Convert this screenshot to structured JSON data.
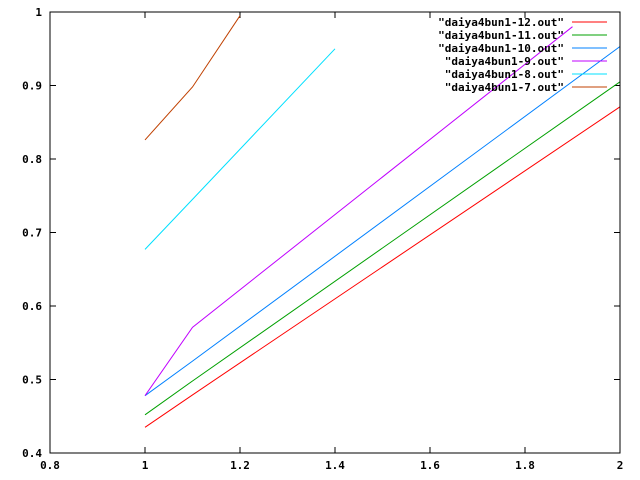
{
  "chart_data": {
    "type": "line",
    "xlim": [
      0.8,
      2.0
    ],
    "ylim": [
      0.4,
      1.0
    ],
    "xticks": [
      "0.8",
      "1",
      "1.2",
      "1.4",
      "1.6",
      "1.8",
      "2"
    ],
    "yticks": [
      "0.4",
      "0.5",
      "0.6",
      "0.7",
      "0.8",
      "0.9",
      "1"
    ],
    "xtick_values": [
      0.8,
      1.0,
      1.2,
      1.4,
      1.6,
      1.8,
      2.0
    ],
    "ytick_values": [
      0.4,
      0.5,
      0.6,
      0.7,
      0.8,
      0.9,
      1.0
    ],
    "grid": false,
    "legend_position": "top-right",
    "series": [
      {
        "name": "\"daiya4bun1-12.out\"",
        "color": "#ff0000",
        "points": [
          [
            1.0,
            0.435
          ],
          [
            1.1,
            0.479
          ],
          [
            2.0,
            0.871
          ]
        ]
      },
      {
        "name": "\"daiya4bun1-11.out\"",
        "color": "#00a000",
        "points": [
          [
            1.0,
            0.452
          ],
          [
            1.1,
            0.498
          ],
          [
            2.0,
            0.905
          ]
        ]
      },
      {
        "name": "\"daiya4bun1-10.out\"",
        "color": "#0080ff",
        "points": [
          [
            1.0,
            0.478
          ],
          [
            1.1,
            0.525
          ],
          [
            2.0,
            0.953
          ]
        ]
      },
      {
        "name": "\"daiya4bun1-9.out\"",
        "color": "#c000ff",
        "points": [
          [
            1.0,
            0.478
          ],
          [
            1.1,
            0.571
          ],
          [
            1.9,
            0.98
          ]
        ]
      },
      {
        "name": "\"daiya4bun1-8.out\"",
        "color": "#00e0ff",
        "points": [
          [
            1.0,
            0.677
          ],
          [
            1.1,
            0.745
          ],
          [
            1.4,
            0.95
          ]
        ]
      },
      {
        "name": "\"daiya4bun1-7.out\"",
        "color": "#c04000",
        "points": [
          [
            1.0,
            0.826
          ],
          [
            1.1,
            0.898
          ],
          [
            1.2,
            0.995
          ]
        ]
      }
    ]
  }
}
